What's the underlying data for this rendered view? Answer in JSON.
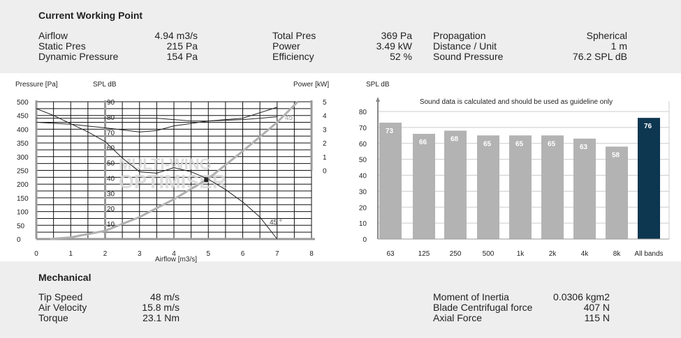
{
  "working_point": {
    "title": "Current Working Point",
    "col1": [
      {
        "label": "Airflow",
        "value": "4.94 m3/s"
      },
      {
        "label": "Static Pres",
        "value": "215 Pa"
      },
      {
        "label": "Dynamic Pressure",
        "value": "154 Pa"
      }
    ],
    "col2": [
      {
        "label": "Total Pres",
        "value": "369 Pa"
      },
      {
        "label": "Power",
        "value": "3.49 kW"
      },
      {
        "label": "Efficiency",
        "value": "52 %"
      }
    ],
    "col3": [
      {
        "label": "Propagation",
        "value": "Spherical"
      },
      {
        "label": "Distance / Unit",
        "value": "1 m"
      },
      {
        "label": "Sound Pressure",
        "value": "76.2 SPL dB"
      }
    ]
  },
  "mechanical": {
    "title": "Mechanical",
    "col1": [
      {
        "label": "Tip Speed",
        "value": "48 m/s"
      },
      {
        "label": "Air Velocity",
        "value": "15.8 m/s"
      },
      {
        "label": "Torque",
        "value": "23.1 Nm"
      }
    ],
    "col2": [
      {
        "label": "Moment of Inertia",
        "value": "0.0306 kgm2"
      },
      {
        "label": "Blade Centrifugal force",
        "value": "407 N"
      },
      {
        "label": "Axial Force",
        "value": "115 N"
      }
    ]
  },
  "chart_data": [
    {
      "type": "line",
      "xlabel": "Airflow [m3/s]",
      "ylabel": "Pressure [Pa]",
      "y2label": "SPL dB",
      "y3label": "Power [kW]",
      "xlim": [
        0,
        8
      ],
      "ylim": [
        0,
        500
      ],
      "x_ticks": [
        "0",
        "1",
        "2",
        "3",
        "4",
        "5",
        "6",
        "7",
        "8"
      ],
      "y_ticks": [
        "0",
        "50",
        "100",
        "150",
        "200",
        "250",
        "300",
        "350",
        "400",
        "450",
        "500"
      ],
      "spl_ticks": [
        "10",
        "20",
        "30",
        "40",
        "50",
        "60",
        "70",
        "80",
        "90"
      ],
      "power_ticks": [
        "0",
        "1",
        "2",
        "3",
        "4",
        "5"
      ],
      "grid": true,
      "watermark": "MULTI-WING OPTIMISER",
      "series": [
        {
          "x": [
            0,
            0.5,
            1,
            1.5,
            2,
            2.5,
            3,
            3.5,
            4,
            4.5,
            5,
            5.5,
            6,
            6.5,
            7
          ],
          "y": [
            475,
            450,
            420,
            390,
            355,
            295,
            245,
            240,
            260,
            245,
            218,
            180,
            135,
            80,
            0
          ]
        },
        {
          "x": [
            0,
            1,
            2,
            3,
            3.5,
            4,
            5,
            6,
            7
          ],
          "y": [
            425,
            418,
            405,
            390,
            395,
            412,
            430,
            440,
            480
          ]
        },
        {
          "x": [
            0,
            1,
            2,
            3,
            3.5,
            4,
            4.5,
            5,
            6,
            7
          ],
          "y": [
            440,
            440,
            440,
            440,
            440,
            435,
            430,
            430,
            435,
            445
          ]
        },
        {
          "x": [
            0.4,
            1,
            2,
            3,
            4,
            5,
            6,
            7,
            7.6
          ],
          "y": [
            0,
            6,
            30,
            80,
            145,
            220,
            320,
            425,
            500
          ],
          "color": "#b0b0b0"
        }
      ],
      "working_point": {
        "x": 4.94,
        "y": 215
      },
      "annotations": [
        "45 °",
        "45"
      ]
    },
    {
      "type": "bar",
      "ylabel": "SPL dB",
      "subtitle": "Sound data is calculated and should be used as guideline only",
      "ylim": [
        0,
        80
      ],
      "y_ticks": [
        "0",
        "10",
        "20",
        "30",
        "40",
        "50",
        "60",
        "70",
        "80"
      ],
      "categories": [
        "63",
        "125",
        "250",
        "500",
        "1k",
        "2k",
        "4k",
        "8k",
        "All bands"
      ],
      "values": [
        73,
        66,
        68,
        65,
        65,
        65,
        63,
        58,
        76
      ],
      "colors": {
        "band": "#b3b3b3",
        "total": "#0d3650"
      }
    }
  ]
}
